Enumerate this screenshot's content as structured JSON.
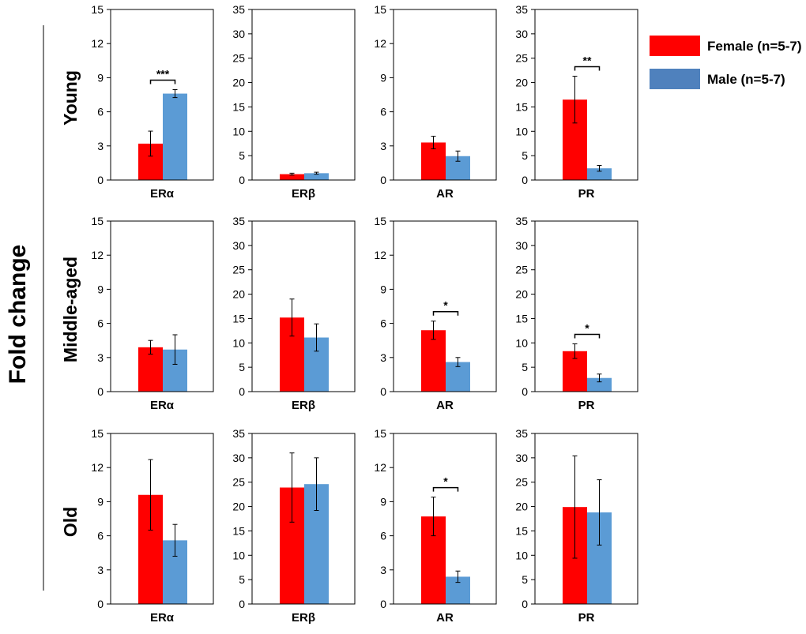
{
  "chart_data": {
    "type": "bar",
    "ylabel": "Fold change",
    "legend": {
      "position": "top-right",
      "entries": [
        {
          "label": "Female (n=5-7)",
          "color": "#ff0000"
        },
        {
          "label": "Male (n=5-7)",
          "color": "#5b9bd5"
        }
      ]
    },
    "rows": [
      {
        "label": "Young",
        "panels": [
          {
            "category": "ERα",
            "ylim": [
              0,
              15
            ],
            "yticks": [
              0,
              3,
              6,
              9,
              12,
              15
            ],
            "female": {
              "value": 3.2,
              "error": 1.1
            },
            "male": {
              "value": 7.6,
              "error": 0.35
            },
            "significance": "***"
          },
          {
            "category": "ERβ",
            "ylim": [
              0,
              35
            ],
            "yticks": [
              0,
              5,
              10,
              15,
              20,
              25,
              30,
              35
            ],
            "female": {
              "value": 1.2,
              "error": 0.2
            },
            "male": {
              "value": 1.4,
              "error": 0.2
            },
            "significance": ""
          },
          {
            "category": "AR",
            "ylim": [
              0,
              15
            ],
            "yticks": [
              0,
              3,
              6,
              9,
              12,
              15
            ],
            "female": {
              "value": 3.3,
              "error": 0.55
            },
            "male": {
              "value": 2.1,
              "error": 0.45
            },
            "significance": ""
          },
          {
            "category": "PR",
            "ylim": [
              0,
              35
            ],
            "yticks": [
              0,
              5,
              10,
              15,
              20,
              25,
              30,
              35
            ],
            "female": {
              "value": 16.5,
              "error": 4.8
            },
            "male": {
              "value": 2.4,
              "error": 0.6
            },
            "significance": "**"
          }
        ]
      },
      {
        "label": "Middle-aged",
        "panels": [
          {
            "category": "ERα",
            "ylim": [
              0,
              15
            ],
            "yticks": [
              0,
              3,
              6,
              9,
              12,
              15
            ],
            "female": {
              "value": 3.9,
              "error": 0.6
            },
            "male": {
              "value": 3.7,
              "error": 1.3
            },
            "significance": ""
          },
          {
            "category": "ERβ",
            "ylim": [
              0,
              35
            ],
            "yticks": [
              0,
              5,
              10,
              15,
              20,
              25,
              30,
              35
            ],
            "female": {
              "value": 15.2,
              "error": 3.8
            },
            "male": {
              "value": 11.1,
              "error": 2.8
            },
            "significance": ""
          },
          {
            "category": "AR",
            "ylim": [
              0,
              15
            ],
            "yticks": [
              0,
              3,
              6,
              9,
              12,
              15
            ],
            "female": {
              "value": 5.4,
              "error": 0.8
            },
            "male": {
              "value": 2.6,
              "error": 0.4
            },
            "significance": "*"
          },
          {
            "category": "PR",
            "ylim": [
              0,
              35
            ],
            "yticks": [
              0,
              5,
              10,
              15,
              20,
              25,
              30,
              35
            ],
            "female": {
              "value": 8.3,
              "error": 1.5
            },
            "male": {
              "value": 2.8,
              "error": 0.8
            },
            "significance": "*"
          }
        ]
      },
      {
        "label": "Old",
        "panels": [
          {
            "category": "ERα",
            "ylim": [
              0,
              15
            ],
            "yticks": [
              0,
              3,
              6,
              9,
              12,
              15
            ],
            "female": {
              "value": 9.6,
              "error": 3.1
            },
            "male": {
              "value": 5.6,
              "error": 1.4
            },
            "significance": ""
          },
          {
            "category": "ERβ",
            "ylim": [
              0,
              35
            ],
            "yticks": [
              0,
              5,
              10,
              15,
              20,
              25,
              30,
              35
            ],
            "female": {
              "value": 23.9,
              "error": 7.1
            },
            "male": {
              "value": 24.6,
              "error": 5.4
            },
            "significance": ""
          },
          {
            "category": "AR",
            "ylim": [
              0,
              15
            ],
            "yticks": [
              0,
              3,
              6,
              9,
              12,
              15
            ],
            "female": {
              "value": 7.7,
              "error": 1.7
            },
            "male": {
              "value": 2.4,
              "error": 0.5
            },
            "significance": "*"
          },
          {
            "category": "PR",
            "ylim": [
              0,
              35
            ],
            "yticks": [
              0,
              5,
              10,
              15,
              20,
              25,
              30,
              35
            ],
            "female": {
              "value": 19.9,
              "error": 10.5
            },
            "male": {
              "value": 18.8,
              "error": 6.7
            },
            "significance": ""
          }
        ]
      }
    ]
  }
}
